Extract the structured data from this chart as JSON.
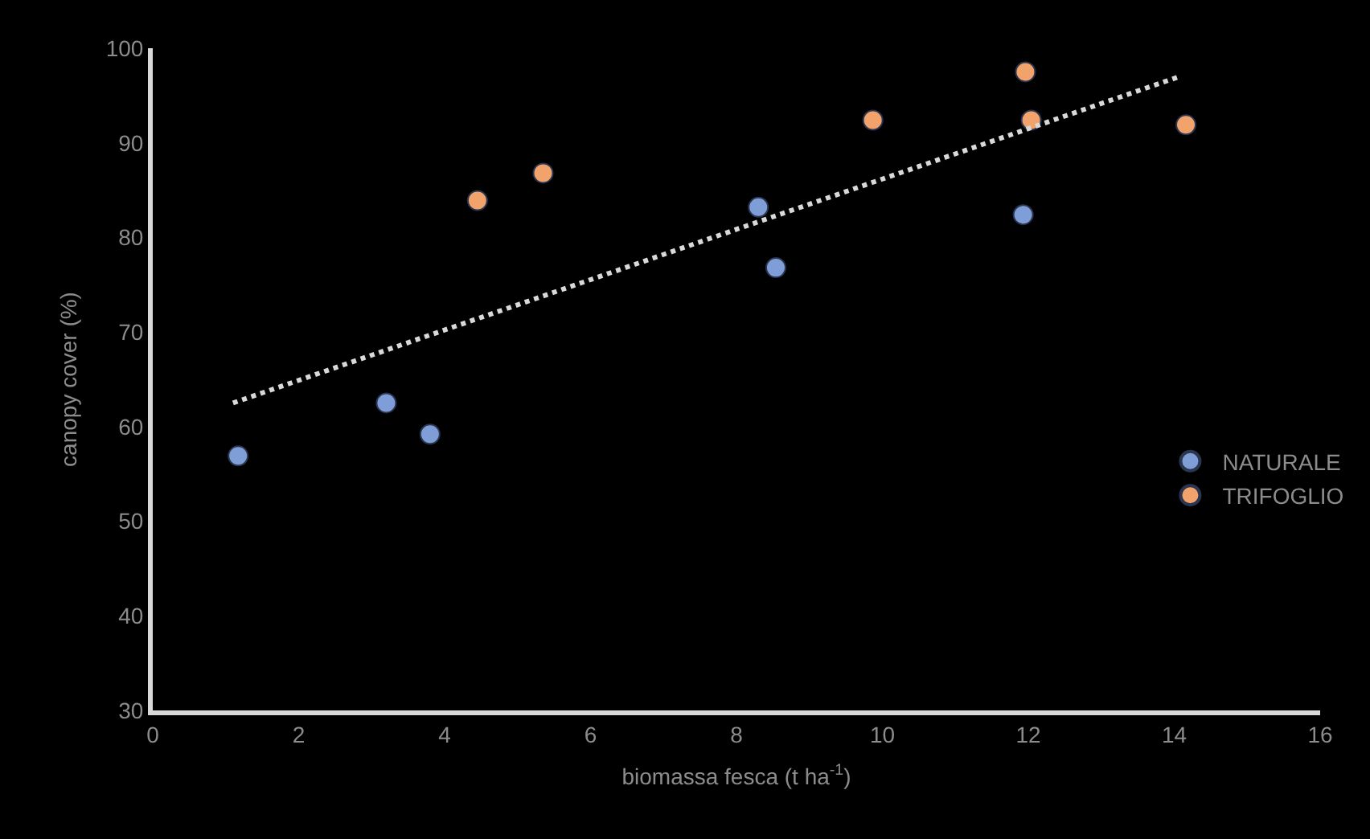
{
  "chart_data": {
    "type": "scatter",
    "xlabel": "biomassa fesca (t ha$^{-1}$)",
    "ylabel": "canopy cover (%)",
    "xlim": [
      0,
      16
    ],
    "xticks": [
      0,
      2,
      4,
      6,
      8,
      10,
      12,
      14,
      16
    ],
    "ylim": [
      30,
      100
    ],
    "yticks": [
      30,
      40,
      50,
      60,
      70,
      80,
      90,
      100
    ],
    "grid": false,
    "legend": "right",
    "marker": "circle",
    "series": [
      {
        "name": "NATURALE",
        "color": "#7f9ed8",
        "x": [
          1.17,
          3.2,
          3.8,
          8.3,
          8.54,
          11.93
        ],
        "values": [
          56.9,
          62.5,
          59.2,
          83.2,
          76.8,
          82.4
        ]
      },
      {
        "name": "TRIFOGLIO",
        "color": "#f2a36c",
        "x": [
          4.45,
          5.35,
          9.87,
          11.96,
          12.04,
          14.16
        ],
        "values": [
          83.9,
          86.8,
          92.4,
          97.5,
          92.4,
          91.9
        ]
      },
      {
        "type": "line",
        "color": "#d9d9d9",
        "line_style": "dotted",
        "marker": "none",
        "x": [
          1.1,
          14.07
        ],
        "values": [
          62.5,
          97.0
        ]
      }
    ]
  }
}
